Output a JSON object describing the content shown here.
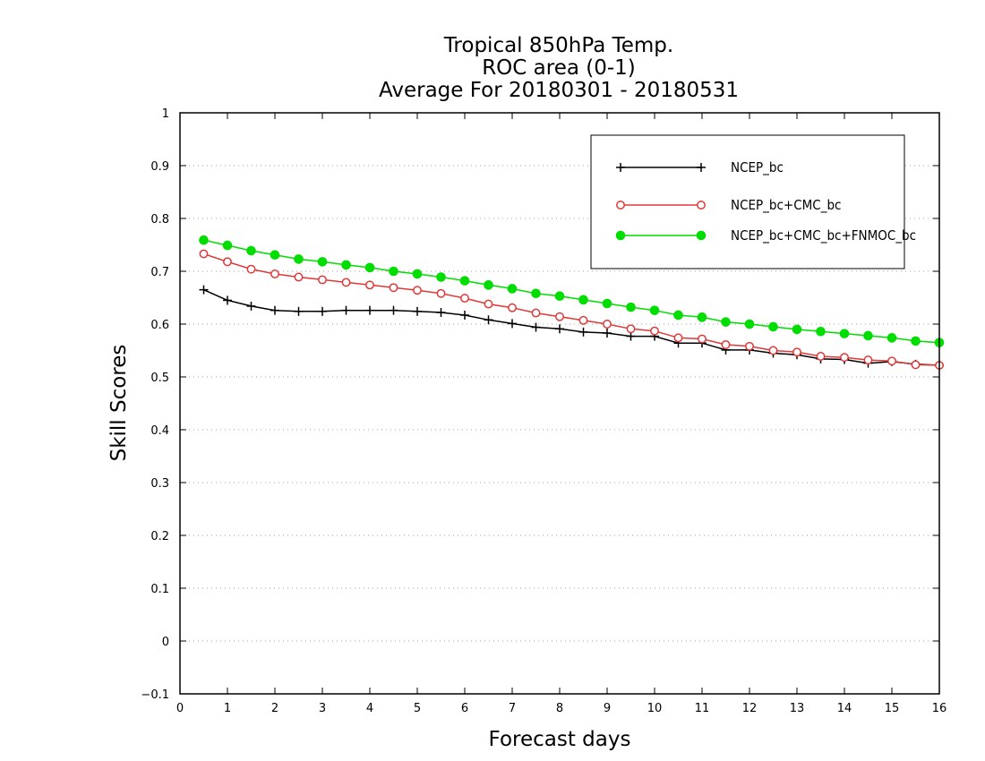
{
  "chart_data": {
    "type": "line",
    "title_lines": [
      "Tropical 850hPa Temp.",
      "ROC area (0-1)",
      "Average For 20180301 - 20180531"
    ],
    "xlabel": "Forecast days",
    "ylabel": "Skill Scores",
    "xlim": [
      0,
      16
    ],
    "ylim": [
      -0.1,
      1
    ],
    "xticks": [
      0,
      1,
      2,
      3,
      4,
      5,
      6,
      7,
      8,
      9,
      10,
      11,
      12,
      13,
      14,
      15,
      16
    ],
    "yticks": [
      -0.1,
      0,
      0.1,
      0.2,
      0.3,
      0.4,
      0.5,
      0.6,
      0.7,
      0.8,
      0.9,
      1
    ],
    "ytick_labels": [
      "−0.1",
      "0",
      "0.1",
      "0.2",
      "0.3",
      "0.4",
      "0.5",
      "0.6",
      "0.7",
      "0.8",
      "0.9",
      "1"
    ],
    "grid": "horizontal dotted",
    "legend_position": "top-right",
    "x": [
      0.5,
      1,
      1.5,
      2,
      2.5,
      3,
      3.5,
      4,
      4.5,
      5,
      5.5,
      6,
      6.5,
      7,
      7.5,
      8,
      8.5,
      9,
      9.5,
      10,
      10.5,
      11,
      11.5,
      12,
      12.5,
      13,
      13.5,
      14,
      14.5,
      15,
      15.5,
      16
    ],
    "series": [
      {
        "name": "NCEP_bc",
        "color": "#000000",
        "marker": "plus",
        "values": [
          0.665,
          0.645,
          0.634,
          0.626,
          0.624,
          0.624,
          0.626,
          0.626,
          0.626,
          0.624,
          0.622,
          0.617,
          0.608,
          0.601,
          0.594,
          0.591,
          0.585,
          0.583,
          0.577,
          0.577,
          0.564,
          0.564,
          0.551,
          0.551,
          0.545,
          0.542,
          0.534,
          0.533,
          0.526,
          0.529,
          0.524,
          0.522
        ]
      },
      {
        "name": "NCEP_bc+CMC_bc",
        "color": "#e03838",
        "marker": "open-circle",
        "values": [
          0.733,
          0.718,
          0.704,
          0.695,
          0.689,
          0.684,
          0.679,
          0.674,
          0.669,
          0.664,
          0.658,
          0.649,
          0.638,
          0.631,
          0.621,
          0.614,
          0.607,
          0.6,
          0.591,
          0.587,
          0.574,
          0.572,
          0.561,
          0.558,
          0.55,
          0.547,
          0.539,
          0.537,
          0.532,
          0.53,
          0.523,
          0.522
        ]
      },
      {
        "name": "NCEP_bc+CMC_bc+FNMOC_bc",
        "color": "#00dd00",
        "marker": "filled-circle",
        "values": [
          0.759,
          0.749,
          0.739,
          0.731,
          0.723,
          0.718,
          0.712,
          0.707,
          0.7,
          0.695,
          0.689,
          0.682,
          0.674,
          0.667,
          0.658,
          0.653,
          0.646,
          0.639,
          0.632,
          0.626,
          0.617,
          0.613,
          0.604,
          0.6,
          0.595,
          0.59,
          0.586,
          0.582,
          0.578,
          0.574,
          0.568,
          0.565
        ]
      }
    ]
  }
}
